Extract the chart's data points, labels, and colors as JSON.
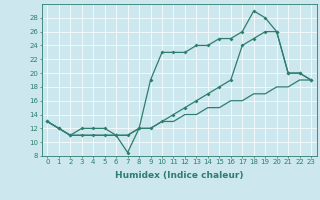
{
  "xlabel": "Humidex (Indice chaleur)",
  "bg_color": "#cce8ee",
  "line_color": "#2e7d6e",
  "grid_color": "#ffffff",
  "xlim": [
    -0.5,
    23.5
  ],
  "ylim": [
    8,
    30
  ],
  "xticks": [
    0,
    1,
    2,
    3,
    4,
    5,
    6,
    7,
    8,
    9,
    10,
    11,
    12,
    13,
    14,
    15,
    16,
    17,
    18,
    19,
    20,
    21,
    22,
    23
  ],
  "yticks": [
    8,
    10,
    12,
    14,
    16,
    18,
    20,
    22,
    24,
    26,
    28
  ],
  "line1_x": [
    0,
    1,
    2,
    3,
    4,
    5,
    6,
    7,
    8,
    9,
    10,
    11,
    12,
    13,
    14,
    15,
    16,
    17,
    18,
    19,
    20,
    21,
    22,
    23
  ],
  "line1_y": [
    13,
    12,
    11,
    11,
    11,
    11,
    11,
    8.5,
    12,
    19,
    23,
    23,
    23,
    24,
    24,
    25,
    25,
    26,
    29,
    28,
    26,
    20,
    20,
    19
  ],
  "line2_x": [
    0,
    1,
    2,
    3,
    4,
    5,
    6,
    7,
    8,
    9,
    10,
    11,
    12,
    13,
    14,
    15,
    16,
    17,
    18,
    19,
    20,
    21,
    22,
    23
  ],
  "line2_y": [
    13,
    12,
    11,
    11,
    11,
    11,
    11,
    11,
    12,
    12,
    13,
    13,
    14,
    14,
    15,
    15,
    16,
    16,
    17,
    17,
    18,
    18,
    19,
    19
  ],
  "line3_x": [
    0,
    1,
    2,
    3,
    4,
    5,
    6,
    7,
    8,
    9,
    10,
    11,
    12,
    13,
    14,
    15,
    16,
    17,
    18,
    19,
    20,
    21,
    22,
    23
  ],
  "line3_y": [
    13,
    12,
    11,
    12,
    12,
    12,
    11,
    11,
    12,
    12,
    13,
    14,
    15,
    16,
    17,
    18,
    19,
    24,
    25,
    26,
    26,
    20,
    20,
    19
  ],
  "xlabel_fontsize": 6.5,
  "tick_fontsize": 5.0,
  "linewidth": 0.9,
  "marker_size": 2.0
}
